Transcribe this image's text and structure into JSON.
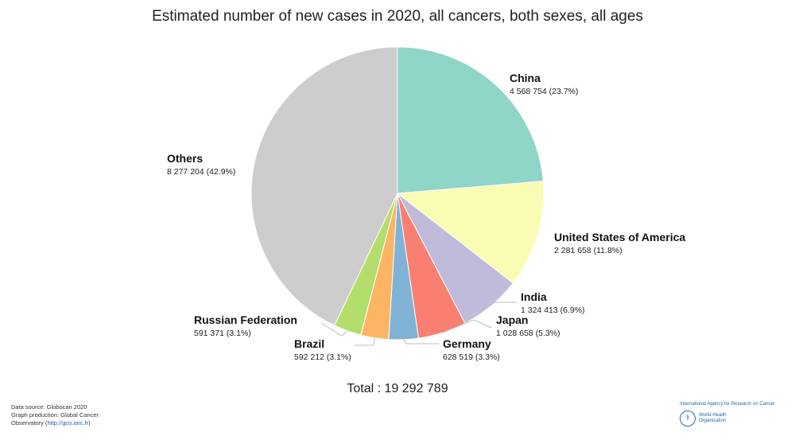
{
  "chart_data": {
    "type": "pie",
    "title": "Estimated number of new cases in 2020, all cancers, both sexes, all ages",
    "slices": [
      {
        "name": "China",
        "value": 4568754,
        "value_label": "4 568 754 (23.7%)",
        "color": "#8fd5c8"
      },
      {
        "name": "United States of America",
        "value": 2281658,
        "value_label": "2 281 658 (11.8%)",
        "color": "#fbfcb4"
      },
      {
        "name": "India",
        "value": 1324413,
        "value_label": "1 324 413 (6.9%)",
        "color": "#c1bbdb"
      },
      {
        "name": "Japan",
        "value": 1028658,
        "value_label": "1 028 658 (5.3%)",
        "color": "#f98071"
      },
      {
        "name": "Germany",
        "value": 628519,
        "value_label": "628 519 (3.3%)",
        "color": "#80b2d5"
      },
      {
        "name": "Brazil",
        "value": 592212,
        "value_label": "592 212 (3.1%)",
        "color": "#fcb563"
      },
      {
        "name": "Russian Federation",
        "value": 591371,
        "value_label": "591 371 (3.1%)",
        "color": "#b3de6c"
      },
      {
        "name": "Others",
        "value": 8277204,
        "value_label": "8 277 204 (42.9%)",
        "color": "#cdcdcd"
      }
    ],
    "total_label": "Total : 19 292 789"
  },
  "footer": {
    "source": "Data source: Globocan 2020",
    "production": "Graph production: Global Cancer",
    "observatory_prefix": "Observatory (",
    "observatory_link": "http://gco.iarc.fr",
    "observatory_suffix": ")"
  },
  "logo": {
    "iarc": "International Agency for Research on Cancer",
    "who_line1": "World Health",
    "who_line2": "Organization"
  }
}
